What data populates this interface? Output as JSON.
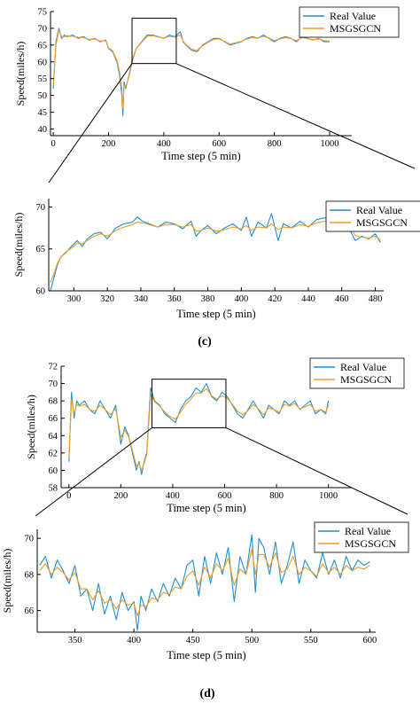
{
  "chart_data": [
    {
      "id": "c-overview",
      "type": "line",
      "xlabel": "Time step (5 min)",
      "ylabel": "Speed(miles/h)",
      "xlim": [
        -10,
        1080
      ],
      "ylim": [
        38,
        75
      ],
      "xticks": [
        0,
        200,
        400,
        600,
        800,
        1000
      ],
      "yticks": [
        40,
        45,
        50,
        55,
        60,
        65,
        70,
        75
      ],
      "legend": "top-right",
      "zoom_box": {
        "x": [
          285,
          445
        ],
        "y": [
          59.5,
          73
        ]
      },
      "series": [
        {
          "name": "Real Value",
          "color": "#1f8fd4",
          "x": [
            0,
            10,
            20,
            30,
            40,
            50,
            70,
            90,
            110,
            130,
            150,
            170,
            190,
            200,
            215,
            230,
            240,
            248,
            252,
            256,
            262,
            268,
            275,
            285,
            300,
            320,
            340,
            360,
            380,
            400,
            420,
            440,
            460,
            470,
            480,
            500,
            520,
            540,
            560,
            580,
            600,
            620,
            640,
            660,
            680,
            700,
            720,
            740,
            760,
            780,
            800,
            820,
            840,
            860,
            880,
            900,
            920,
            940,
            960,
            980,
            1000
          ],
          "y": [
            52,
            66,
            70,
            67,
            68,
            67.5,
            68,
            67,
            67.5,
            66.5,
            67,
            66,
            66.5,
            64,
            63,
            60,
            56,
            50,
            44,
            54,
            52,
            54,
            56,
            60,
            64,
            66,
            68,
            68,
            67.5,
            67,
            68,
            67.5,
            69,
            66,
            65,
            63.5,
            63,
            65,
            66,
            67,
            67,
            66,
            65,
            65.5,
            66,
            67,
            67.5,
            67,
            68,
            67,
            66,
            67,
            67.5,
            67,
            66,
            67.5,
            67,
            66.5,
            67,
            66,
            66
          ]
        },
        {
          "name": "MSGSGCN",
          "color": "#f29b23",
          "x": [
            0,
            10,
            20,
            30,
            40,
            50,
            70,
            90,
            110,
            130,
            150,
            170,
            190,
            200,
            215,
            230,
            240,
            248,
            252,
            256,
            262,
            268,
            275,
            285,
            300,
            320,
            340,
            360,
            380,
            400,
            420,
            440,
            460,
            470,
            480,
            500,
            520,
            540,
            560,
            580,
            600,
            620,
            640,
            660,
            680,
            700,
            720,
            740,
            760,
            780,
            800,
            820,
            840,
            860,
            880,
            900,
            920,
            940,
            960,
            980,
            1000
          ],
          "y": [
            53,
            65,
            69.5,
            67.5,
            67.5,
            67.8,
            67.6,
            67.3,
            67.2,
            66.7,
            66.8,
            66.2,
            66.3,
            64.2,
            63.3,
            60.5,
            57,
            52,
            46,
            53,
            52.5,
            54,
            56.5,
            60.5,
            64,
            65.8,
            67.6,
            67.8,
            67.4,
            67.1,
            67.6,
            67.4,
            68,
            66.2,
            65.2,
            63.8,
            63.4,
            64.8,
            65.8,
            66.7,
            66.8,
            66.1,
            65.3,
            65.7,
            66.1,
            66.8,
            67.2,
            67.1,
            67.6,
            67.1,
            66.3,
            66.8,
            67.2,
            66.9,
            66.3,
            67.2,
            66.9,
            66.6,
            66.8,
            66.3,
            66.2
          ]
        }
      ]
    },
    {
      "id": "c-zoom",
      "type": "line",
      "xlabel": "Time step (5 min)",
      "ylabel": "Speed(miles/h)",
      "xlim": [
        285,
        485
      ],
      "ylim": [
        60,
        71
      ],
      "xticks": [
        300,
        320,
        340,
        360,
        380,
        400,
        420,
        440,
        460,
        480
      ],
      "yticks": [
        60,
        65,
        70
      ],
      "legend": "top-right",
      "series": [
        {
          "name": "Real Value",
          "color": "#1f8fd4",
          "x": [
            286,
            288,
            290,
            292,
            295,
            298,
            302,
            305,
            308,
            312,
            316,
            320,
            325,
            330,
            335,
            338,
            341,
            345,
            350,
            355,
            360,
            365,
            370,
            373,
            376,
            380,
            385,
            390,
            395,
            400,
            403,
            406,
            410,
            415,
            418,
            422,
            425,
            430,
            435,
            440,
            445,
            450,
            455,
            458,
            462,
            465,
            468,
            472,
            476,
            480,
            483
          ],
          "y": [
            60,
            61.5,
            63,
            64,
            64.5,
            65.2,
            66,
            65.3,
            66.2,
            66.8,
            67,
            66.2,
            67.5,
            68,
            68.2,
            68.8,
            68.3,
            68,
            67.6,
            68.2,
            68,
            67.4,
            68.3,
            66.5,
            67.2,
            67.8,
            66.8,
            67.5,
            68,
            67.2,
            68.8,
            66.5,
            68.2,
            67.5,
            69.2,
            66,
            68,
            67.5,
            68.3,
            67.6,
            68.5,
            68.7,
            68.2,
            69,
            68.4,
            67.2,
            66,
            66.5,
            66.2,
            66.8,
            65.8
          ]
        },
        {
          "name": "MSGSGCN",
          "color": "#f29b23",
          "x": [
            286,
            288,
            290,
            292,
            295,
            298,
            302,
            305,
            308,
            312,
            316,
            320,
            325,
            330,
            335,
            338,
            341,
            345,
            350,
            355,
            360,
            365,
            370,
            373,
            376,
            380,
            385,
            390,
            395,
            400,
            403,
            406,
            410,
            415,
            418,
            422,
            425,
            430,
            435,
            440,
            445,
            450,
            455,
            458,
            462,
            465,
            468,
            472,
            476,
            480,
            483
          ],
          "y": [
            61,
            62,
            63.2,
            64,
            64.6,
            65,
            65.7,
            65.6,
            66,
            66.5,
            66.8,
            66.5,
            67.2,
            67.6,
            67.9,
            68.2,
            68.1,
            67.9,
            67.6,
            67.9,
            67.9,
            67.6,
            67.9,
            67.1,
            67.2,
            67.5,
            67.1,
            67.3,
            67.6,
            67.4,
            67.8,
            67.2,
            67.6,
            67.5,
            68,
            67.3,
            67.6,
            67.5,
            67.9,
            67.7,
            68.1,
            68.3,
            68.2,
            68.5,
            68.3,
            67.6,
            66.6,
            66.4,
            66.3,
            66.5,
            66.1
          ]
        }
      ]
    },
    {
      "id": "d-overview",
      "type": "line",
      "xlabel": "Time step (5 min)",
      "ylabel": "Speed(miles/h)",
      "xlim": [
        -30,
        1090
      ],
      "ylim": [
        58,
        72
      ],
      "xticks": [
        0,
        200,
        400,
        600,
        800,
        1000
      ],
      "yticks": [
        58,
        60,
        62,
        64,
        66,
        68,
        70,
        72
      ],
      "legend": "top-right",
      "zoom_box": {
        "x": [
          320,
          605
        ],
        "y": [
          64.9,
          70.5
        ]
      },
      "series": [
        {
          "name": "Real Value",
          "color": "#1f8fd4",
          "x": [
            0,
            10,
            20,
            30,
            40,
            60,
            80,
            100,
            120,
            140,
            160,
            180,
            200,
            215,
            230,
            245,
            260,
            270,
            280,
            290,
            300,
            315,
            330,
            350,
            370,
            390,
            410,
            430,
            450,
            470,
            490,
            510,
            530,
            550,
            570,
            590,
            610,
            630,
            650,
            670,
            690,
            710,
            730,
            750,
            770,
            790,
            810,
            830,
            850,
            870,
            890,
            910,
            930,
            950,
            970,
            990,
            1000
          ],
          "y": [
            61,
            69,
            66,
            68,
            67.5,
            68,
            67,
            66.5,
            68,
            67,
            66,
            67.5,
            63,
            65,
            64,
            62,
            60,
            61,
            59.5,
            61,
            62,
            69.5,
            68,
            67.5,
            66.5,
            66,
            65.5,
            67,
            68,
            68.5,
            69.5,
            69,
            70,
            68.5,
            68,
            69,
            68.5,
            67.5,
            66.5,
            66,
            67,
            68,
            67,
            66,
            67.5,
            67,
            66.5,
            68,
            67.5,
            68,
            67,
            67.5,
            68,
            66.5,
            67,
            66.5,
            68
          ]
        },
        {
          "name": "MSGSGCN",
          "color": "#f29b23",
          "x": [
            0,
            10,
            20,
            30,
            40,
            60,
            80,
            100,
            120,
            140,
            160,
            180,
            200,
            215,
            230,
            245,
            260,
            270,
            280,
            290,
            300,
            315,
            330,
            350,
            370,
            390,
            410,
            430,
            450,
            470,
            490,
            510,
            530,
            550,
            570,
            590,
            610,
            630,
            650,
            670,
            690,
            710,
            730,
            750,
            770,
            790,
            810,
            830,
            850,
            870,
            890,
            910,
            930,
            950,
            970,
            990,
            1000
          ],
          "y": [
            61.5,
            68.2,
            66.5,
            67.6,
            67.4,
            67.6,
            67,
            66.8,
            67.5,
            67,
            66.4,
            67.1,
            63.8,
            64.6,
            63.9,
            62.3,
            60.5,
            60.8,
            60,
            60.8,
            61.8,
            68.7,
            67.9,
            67.4,
            66.7,
            66.2,
            65.9,
            66.7,
            67.6,
            68.2,
            68.9,
            68.9,
            69.4,
            68.6,
            68.2,
            68.6,
            68.3,
            67.6,
            66.8,
            66.4,
            66.9,
            67.6,
            67.1,
            66.4,
            67.2,
            67,
            66.7,
            67.6,
            67.4,
            67.7,
            67.1,
            67.3,
            67.6,
            66.8,
            67,
            66.7,
            67.5
          ]
        }
      ]
    },
    {
      "id": "d-zoom",
      "type": "line",
      "xlabel": "Time step (5 min)",
      "ylabel": "Speed(miles/h)",
      "xlim": [
        318,
        605
      ],
      "ylim": [
        64.8,
        70.5
      ],
      "xticks": [
        350,
        400,
        450,
        500,
        550,
        600
      ],
      "yticks": [
        66,
        68,
        70
      ],
      "legend": "top-right",
      "series": [
        {
          "name": "Real Value",
          "color": "#1f8fd4",
          "x": [
            320,
            325,
            330,
            335,
            340,
            345,
            350,
            355,
            360,
            365,
            370,
            375,
            380,
            385,
            390,
            395,
            400,
            403,
            406,
            410,
            415,
            420,
            425,
            430,
            435,
            440,
            445,
            450,
            455,
            460,
            465,
            470,
            475,
            480,
            485,
            490,
            495,
            500,
            503,
            506,
            510,
            515,
            520,
            525,
            530,
            535,
            540,
            545,
            550,
            555,
            560,
            565,
            570,
            575,
            580,
            585,
            590,
            595,
            600
          ],
          "y": [
            68.5,
            69,
            67.8,
            68.8,
            68.2,
            67.5,
            68.5,
            66.8,
            67.2,
            66,
            67.5,
            65.8,
            66.8,
            65.5,
            67,
            66,
            66.5,
            64.9,
            66.8,
            66,
            67.2,
            66.5,
            67.5,
            66.8,
            67.8,
            67.2,
            68.5,
            68.8,
            66.8,
            69,
            67.5,
            69.2,
            68,
            69.5,
            66.5,
            69,
            68,
            70.2,
            67,
            70,
            69.5,
            68,
            69.8,
            67.5,
            68.5,
            69.8,
            67.5,
            68.8,
            68.2,
            67.8,
            69.2,
            68,
            68.8,
            67.8,
            69,
            68.2,
            68.8,
            68.5,
            68.7
          ]
        },
        {
          "name": "MSGSGCN",
          "color": "#f29b23",
          "x": [
            320,
            325,
            330,
            335,
            340,
            345,
            350,
            355,
            360,
            365,
            370,
            375,
            380,
            385,
            390,
            395,
            400,
            403,
            406,
            410,
            415,
            420,
            425,
            430,
            435,
            440,
            445,
            450,
            455,
            460,
            465,
            470,
            475,
            480,
            485,
            490,
            495,
            500,
            503,
            506,
            510,
            515,
            520,
            525,
            530,
            535,
            540,
            545,
            550,
            555,
            560,
            565,
            570,
            575,
            580,
            585,
            590,
            595,
            600
          ],
          "y": [
            68.2,
            68.6,
            68,
            68.4,
            68.1,
            67.7,
            68.1,
            67.2,
            67.2,
            66.6,
            67.1,
            66.4,
            66.6,
            66.1,
            66.6,
            66.3,
            66.4,
            65.7,
            66.3,
            66.2,
            66.7,
            66.6,
            67,
            66.9,
            67.3,
            67.2,
            67.9,
            68.2,
            67.4,
            68.4,
            67.8,
            68.6,
            68.2,
            68.9,
            67.4,
            68.3,
            68,
            69.4,
            68,
            69.1,
            69.1,
            68.4,
            69.2,
            68.1,
            68.3,
            69,
            68,
            68.4,
            68.2,
            67.9,
            68.6,
            68.1,
            68.4,
            68,
            68.5,
            68.2,
            68.4,
            68.3,
            68.5
          ]
        }
      ]
    }
  ],
  "captions": {
    "c": "(c)",
    "d": "(d)"
  }
}
